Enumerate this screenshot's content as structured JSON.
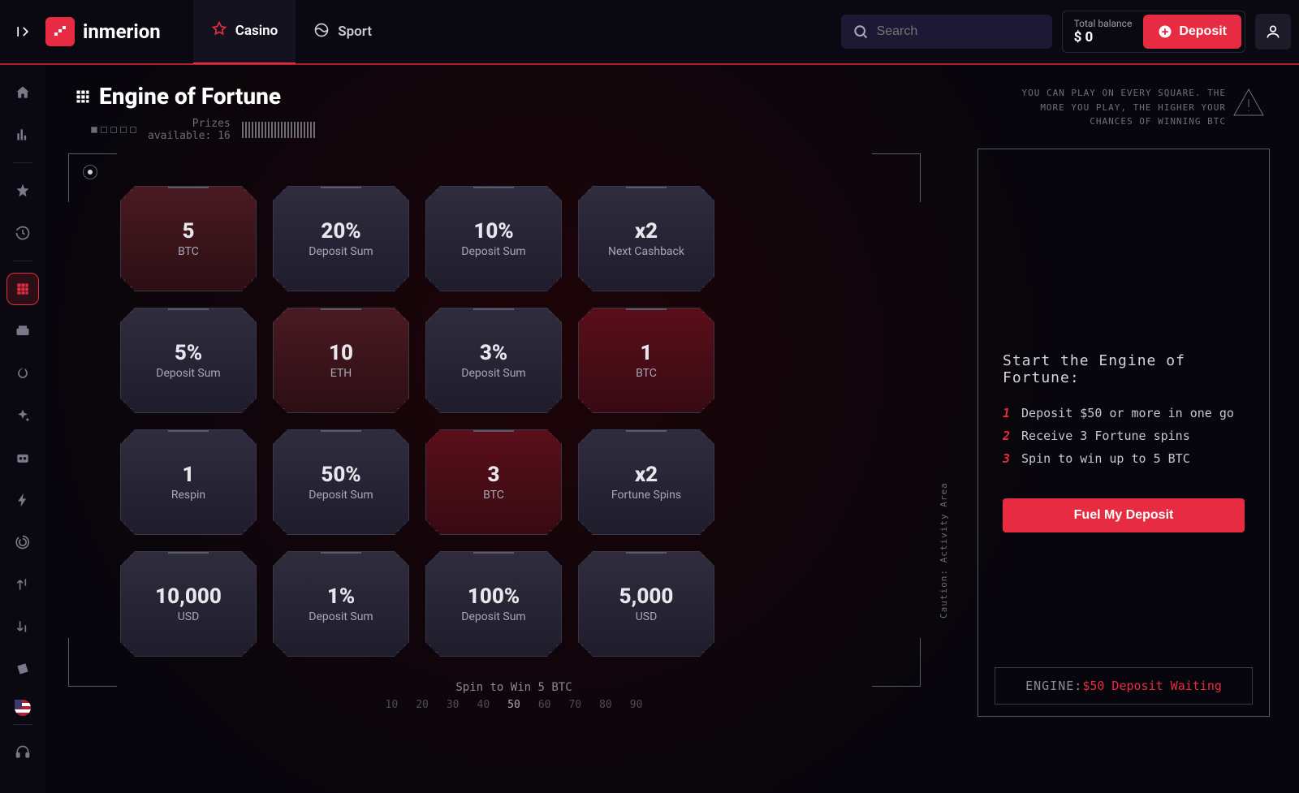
{
  "brand": "inmerion",
  "nav": {
    "casino": "Casino",
    "sport": "Sport"
  },
  "search": {
    "placeholder": "Search"
  },
  "balance": {
    "label": "Total balance",
    "value": "$ 0"
  },
  "deposit_btn": "Deposit",
  "title": "Engine of Fortune",
  "info": "YOU CAN PLAY ON EVERY SQUARE. THE MORE YOU PLAY, THE HIGHER YOUR CHANCES OF WINNING BTC",
  "meta": {
    "prizes_line1": "Prizes",
    "prizes_line2": "available: 16"
  },
  "tiles": [
    {
      "val": "5",
      "sub": "BTC",
      "style": "red"
    },
    {
      "val": "20%",
      "sub": "Deposit Sum",
      "style": "dark"
    },
    {
      "val": "10%",
      "sub": "Deposit Sum",
      "style": "dark"
    },
    {
      "val": "x2",
      "sub": "Next Cashback",
      "style": "dark"
    },
    {
      "val": "5%",
      "sub": "Deposit Sum",
      "style": "dark"
    },
    {
      "val": "10",
      "sub": "ETH",
      "style": "red"
    },
    {
      "val": "3%",
      "sub": "Deposit Sum",
      "style": "dark"
    },
    {
      "val": "1",
      "sub": "BTC",
      "style": "deepred"
    },
    {
      "val": "1",
      "sub": "Respin",
      "style": "dark"
    },
    {
      "val": "50%",
      "sub": "Deposit Sum",
      "style": "dark"
    },
    {
      "val": "3",
      "sub": "BTC",
      "style": "deepred"
    },
    {
      "val": "x2",
      "sub": "Fortune Spins",
      "style": "dark"
    },
    {
      "val": "10,000",
      "sub": "USD",
      "style": "dark"
    },
    {
      "val": "1%",
      "sub": "Deposit Sum",
      "style": "dark"
    },
    {
      "val": "100%",
      "sub": "Deposit Sum",
      "style": "dark"
    },
    {
      "val": "5,000",
      "sub": "USD",
      "style": "dark"
    }
  ],
  "bottom_text": "Spin to Win 5 BTC",
  "ruler": [
    "10",
    "20",
    "30",
    "40",
    "50",
    "60",
    "70",
    "80",
    "90"
  ],
  "panel": {
    "title": "Start the Engine of Fortune:",
    "steps": [
      "Deposit $50 or more in one go",
      "Receive 3 Fortune spins",
      "Spin to win up to 5 BTC"
    ],
    "cta": "Fuel My Deposit",
    "vert": "Caution: Activity Area",
    "status_label": "ENGINE:",
    "status_value": "$50 Deposit Waiting"
  },
  "colors": {
    "accent": "#e72b42",
    "bg": "#07060c"
  }
}
